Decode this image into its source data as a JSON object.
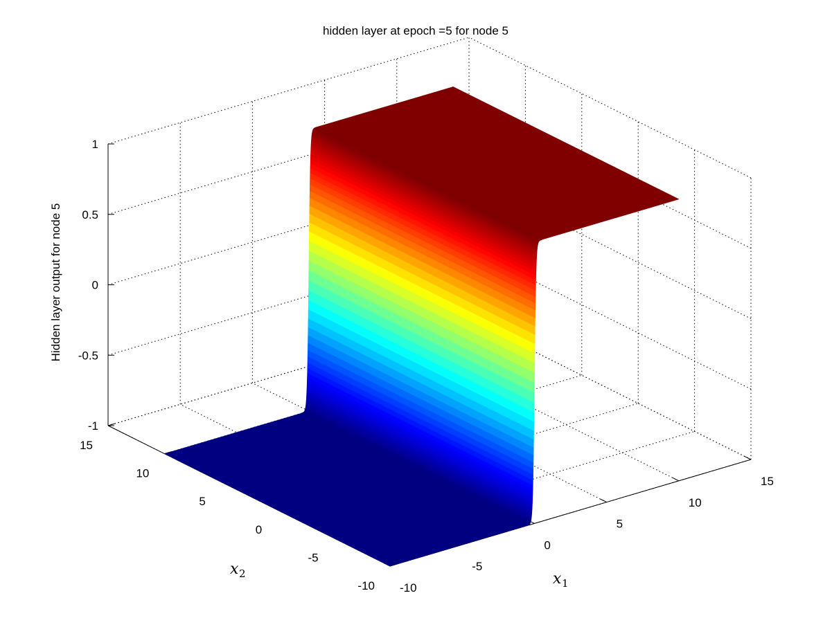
{
  "chart_data": {
    "type": "surface",
    "title": "hidden layer at epoch =5 for node 5",
    "xlabel": "x_1",
    "ylabel": "x_2",
    "zlabel": "Hidden layer output for node 5",
    "x_label_parts": {
      "symbol": "x",
      "subscript": "1"
    },
    "y_label_parts": {
      "symbol": "x",
      "subscript": "2"
    },
    "xlim": [
      -10,
      15
    ],
    "ylim": [
      -10,
      15
    ],
    "zlim": [
      -1,
      1
    ],
    "x_ticks": [
      -10,
      -5,
      0,
      5,
      10,
      15
    ],
    "y_ticks": [
      -10,
      -5,
      0,
      5,
      10,
      15
    ],
    "z_ticks": [
      -1,
      -0.5,
      0,
      0.5,
      1
    ],
    "x_tick_labels": [
      "-10",
      "-5",
      "0",
      "5",
      "10",
      "15"
    ],
    "y_tick_labels": [
      "-10",
      "-5",
      "0",
      "5",
      "10",
      "15"
    ],
    "z_tick_labels": [
      "-1",
      "-0.5",
      "0",
      "0.5",
      "1"
    ],
    "data_x_range": [
      -10,
      10
    ],
    "data_y_range": [
      -10,
      10
    ],
    "surface": "z = tanh(x1): ≈ -1 for x1 < 0, ≈ +1 for x1 > 0, sharp step at x1 = 0, independent of x2",
    "z_low": -1,
    "z_high": 1,
    "step_location_x1": 0,
    "colormap": "jet",
    "grid": true,
    "box": false
  }
}
